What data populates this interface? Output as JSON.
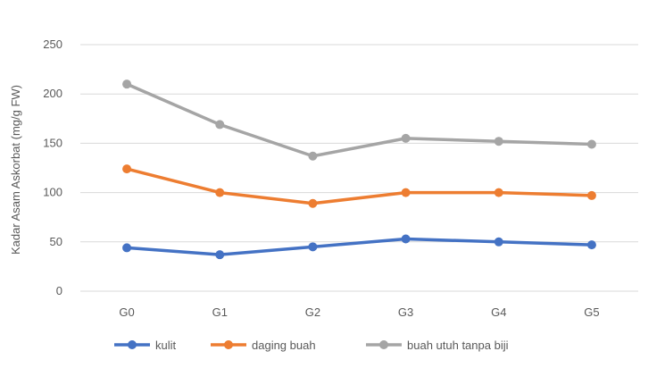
{
  "chart_data": {
    "type": "line",
    "title": "",
    "xlabel": "",
    "ylabel": "Kadar Asam Askorbat (mg/g FW)",
    "categories": [
      "G0",
      "G1",
      "G2",
      "G3",
      "G4",
      "G5"
    ],
    "ylim": [
      0,
      250
    ],
    "yticks": [
      0,
      50,
      100,
      150,
      200,
      250
    ],
    "grid": true,
    "legend": "bottom",
    "series": [
      {
        "name": "kulit",
        "color": "#4472C4",
        "values": [
          44,
          37,
          45,
          53,
          50,
          47
        ]
      },
      {
        "name": "daging buah",
        "color": "#ED7D31",
        "values": [
          124,
          100,
          89,
          100,
          100,
          97
        ]
      },
      {
        "name": "buah utuh tanpa biji",
        "color": "#A5A5A5",
        "values": [
          210,
          169,
          137,
          155,
          152,
          149
        ]
      }
    ]
  }
}
